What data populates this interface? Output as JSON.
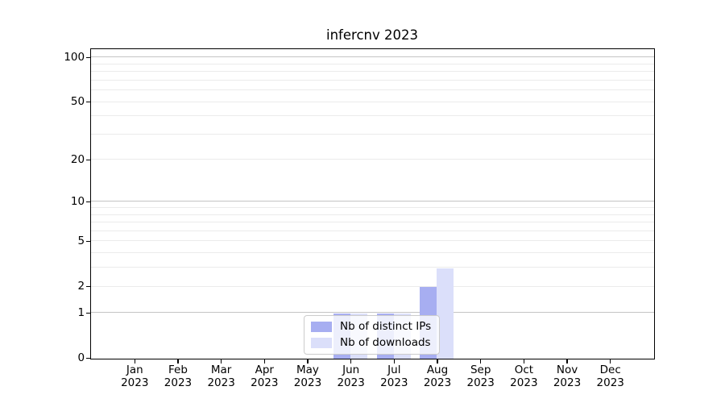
{
  "chart_data": {
    "type": "bar",
    "title": "infercnv 2023",
    "categories": [
      "Jan",
      "Feb",
      "Mar",
      "Apr",
      "May",
      "Jun",
      "Jul",
      "Aug",
      "Sep",
      "Oct",
      "Nov",
      "Dec"
    ],
    "category_year": "2023",
    "series": [
      {
        "name": "Nb of distinct IPs",
        "color": "#a7aef1",
        "values": [
          0,
          0,
          0,
          0,
          0,
          1,
          1,
          2,
          0,
          0,
          0,
          0
        ]
      },
      {
        "name": "Nb of downloads",
        "color": "#dbdffa",
        "values": [
          0,
          0,
          0,
          0,
          0,
          1,
          1,
          3,
          0,
          0,
          0,
          0
        ]
      }
    ],
    "yscale": "log10(1+x)",
    "ylim": [
      0,
      113
    ],
    "y_ticks": [
      0,
      1,
      2,
      5,
      10,
      20,
      50,
      100
    ],
    "y_major_grid": [
      1,
      10,
      100
    ],
    "y_minor_grid": [
      2,
      3,
      4,
      5,
      6,
      7,
      8,
      9,
      20,
      30,
      40,
      50,
      60,
      70,
      80,
      90
    ],
    "grid": "horizontal, minor and major, behind bars",
    "legend_position": "inside plot, lower center",
    "colors": {
      "major_grid": "#c4c4c4",
      "minor_grid": "#ebebeb",
      "axis": "#000000",
      "background": "#ffffff"
    }
  }
}
